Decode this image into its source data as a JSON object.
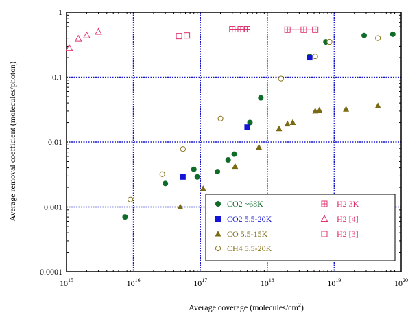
{
  "chart_data": {
    "type": "scatter",
    "xlabel": "Average coverage (molecules/cm",
    "xlabel_sup": "2",
    "xlabel_suffix": ")",
    "ylabel": "Average removal coefficient (molecules/photon)",
    "x_scale": "log",
    "y_scale": "log",
    "xlim": [
      1000000000000000.0,
      1e+20
    ],
    "ylim": [
      0.0001,
      1
    ],
    "grid": true,
    "legend_position": "bottom-right",
    "x_ticks": [
      {
        "value": 1000000000000000.0,
        "base": "10",
        "exp": "15"
      },
      {
        "value": 1e+16,
        "base": "10",
        "exp": "16"
      },
      {
        "value": 1e+17,
        "base": "10",
        "exp": "17"
      },
      {
        "value": 1e+18,
        "base": "10",
        "exp": "18"
      },
      {
        "value": 1e+19,
        "base": "10",
        "exp": "19"
      },
      {
        "value": 1e+20,
        "base": "10",
        "exp": "20"
      }
    ],
    "y_ticks": [
      {
        "value": 0.0001,
        "label": "0.0001"
      },
      {
        "value": 0.001,
        "label": "0.001"
      },
      {
        "value": 0.01,
        "label": "0.01"
      },
      {
        "value": 0.1,
        "label": "0.1"
      },
      {
        "value": 1,
        "label": "1"
      }
    ],
    "series": [
      {
        "name": "CO2 ~68K",
        "marker": "filled-circle",
        "color": "#0f6b2a",
        "points": [
          [
            7500000000000000.0,
            0.0007
          ],
          [
            3e+16,
            0.0023
          ],
          [
            8e+16,
            0.0038
          ],
          [
            9e+16,
            0.0029
          ],
          [
            1.8e+17,
            0.0035
          ],
          [
            2.6e+17,
            0.0053
          ],
          [
            3.2e+17,
            0.0065
          ],
          [
            8e+17,
            0.048
          ],
          [
            5.5e+17,
            0.02
          ],
          [
            4.3e+18,
            0.21
          ],
          [
            7.5e+18,
            0.35
          ],
          [
            2.8e+19,
            0.44
          ],
          [
            7.5e+19,
            0.46
          ]
        ]
      },
      {
        "name": "CO2 5.5-20K",
        "marker": "filled-square",
        "color": "#1414d6",
        "points": [
          [
            5.5e+16,
            0.0029
          ],
          [
            5e+17,
            0.017
          ],
          [
            4.3e+18,
            0.2
          ]
        ]
      },
      {
        "name": "CO 5.5-15K",
        "marker": "filled-triangle",
        "color": "#7a6a14",
        "points": [
          [
            5e+16,
            0.001
          ],
          [
            1.1e+17,
            0.0019
          ],
          [
            3.3e+17,
            0.0042
          ],
          [
            7.5e+17,
            0.0083
          ],
          [
            1.5e+18,
            0.016
          ],
          [
            2e+18,
            0.019
          ],
          [
            2.4e+18,
            0.02
          ],
          [
            5.2e+18,
            0.03
          ],
          [
            6e+18,
            0.031
          ],
          [
            1.5e+19,
            0.032
          ],
          [
            4.5e+19,
            0.036
          ]
        ]
      },
      {
        "name": "CH4 5.5-20K",
        "marker": "open-circle",
        "color": "#8a7318",
        "points": [
          [
            9000000000000000.0,
            0.0013
          ],
          [
            2.7e+16,
            0.0032
          ],
          [
            5.5e+16,
            0.0078
          ],
          [
            2e+17,
            0.023
          ],
          [
            1.6e+18,
            0.095
          ],
          [
            5.2e+18,
            0.21
          ],
          [
            8.5e+18,
            0.35
          ],
          [
            4.5e+19,
            0.4
          ]
        ]
      },
      {
        "name": "H2 3K",
        "marker": "boxed-plus",
        "color": "#e0306a",
        "connected": true,
        "points": [
          [
            3e+17,
            0.55
          ],
          [
            4e+17,
            0.55
          ],
          [
            5e+17,
            0.55
          ],
          [
            2e+18,
            0.54
          ],
          [
            3.5e+18,
            0.54
          ],
          [
            5.2e+18,
            0.54
          ]
        ]
      },
      {
        "name": "H2 [4]",
        "marker": "open-triangle",
        "color": "#e0306a",
        "points": [
          [
            1100000000000000.0,
            0.28
          ],
          [
            1500000000000000.0,
            0.39
          ],
          [
            2000000000000000.0,
            0.44
          ],
          [
            3000000000000000.0,
            0.5
          ]
        ]
      },
      {
        "name": "H2 [3]",
        "marker": "open-square",
        "color": "#e0306a",
        "points": [
          [
            4.8e+16,
            0.43
          ],
          [
            6.3e+16,
            0.44
          ]
        ]
      }
    ]
  }
}
